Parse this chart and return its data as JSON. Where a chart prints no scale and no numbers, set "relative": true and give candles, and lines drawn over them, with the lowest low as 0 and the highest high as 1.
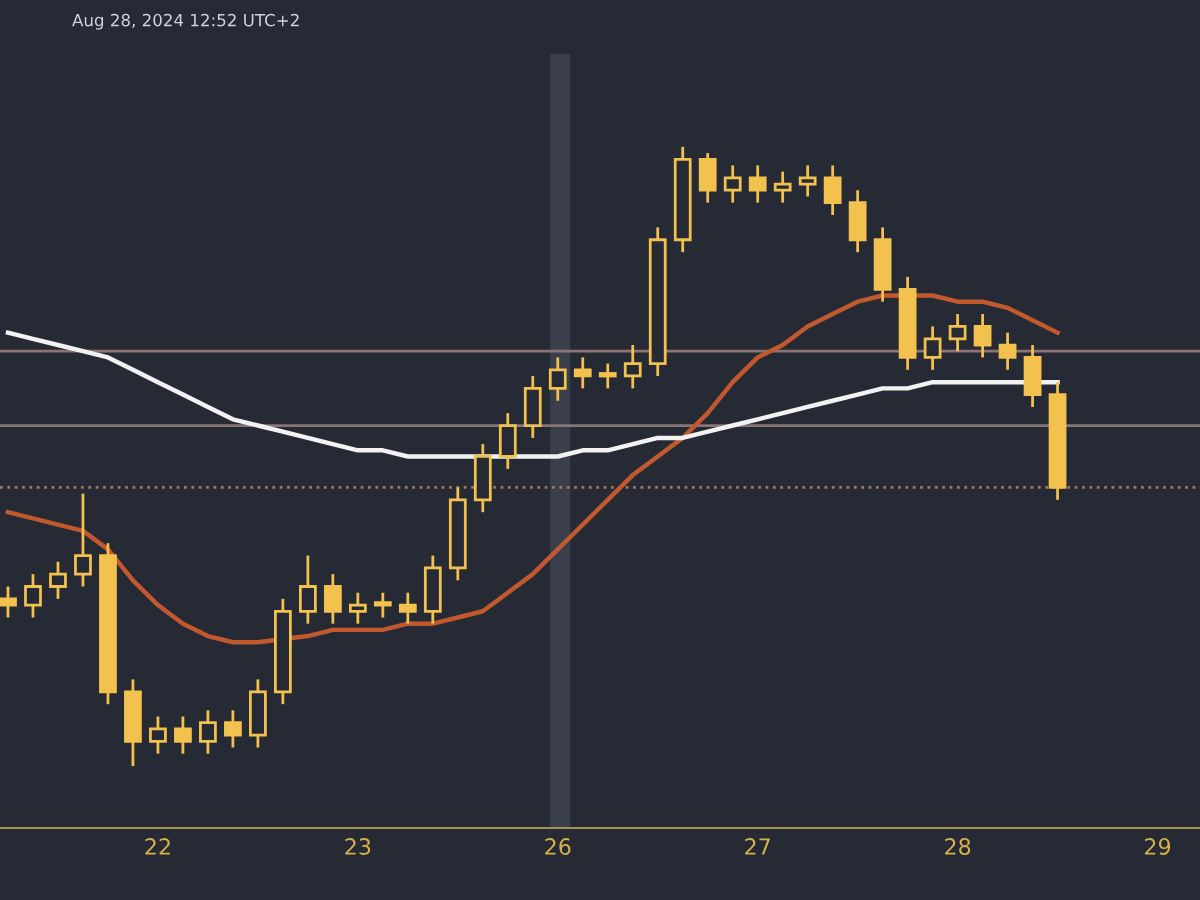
{
  "chart_data": {
    "type": "candlestick",
    "relative": true,
    "annotations": [
      "Aug 28, 2024 12:52 UTC+2"
    ],
    "categories": [
      null,
      null,
      null,
      null,
      null,
      null,
      "22",
      null,
      null,
      null,
      null,
      null,
      null,
      null,
      "23",
      null,
      null,
      null,
      null,
      null,
      null,
      null,
      "26",
      null,
      null,
      null,
      null,
      null,
      null,
      null,
      "27",
      null,
      null,
      null,
      null,
      null,
      null,
      null,
      "28",
      null,
      null,
      null,
      null,
      null,
      null,
      null,
      "29"
    ],
    "ohlc": [
      [
        0.27,
        0.29,
        0.24,
        0.26
      ],
      [
        0.26,
        0.31,
        0.24,
        0.29
      ],
      [
        0.29,
        0.33,
        0.27,
        0.31
      ],
      [
        0.31,
        0.44,
        0.29,
        0.34
      ],
      [
        0.34,
        0.36,
        0.1,
        0.12
      ],
      [
        0.12,
        0.14,
        0,
        0.04
      ],
      [
        0.04,
        0.08,
        0.02,
        0.06
      ],
      [
        0.06,
        0.08,
        0.02,
        0.04
      ],
      [
        0.04,
        0.09,
        0.02,
        0.07
      ],
      [
        0.07,
        0.09,
        0.03,
        0.05
      ],
      [
        0.05,
        0.14,
        0.03,
        0.12
      ],
      [
        0.12,
        0.27,
        0.1,
        0.25
      ],
      [
        0.25,
        0.34,
        0.23,
        0.29
      ],
      [
        0.29,
        0.31,
        0.23,
        0.25
      ],
      [
        0.25,
        0.28,
        0.23,
        0.26
      ],
      [
        0.26,
        0.28,
        0.24,
        0.26
      ],
      [
        0.26,
        0.28,
        0.23,
        0.25
      ],
      [
        0.25,
        0.34,
        0.23,
        0.32
      ],
      [
        0.32,
        0.45,
        0.3,
        0.43
      ],
      [
        0.43,
        0.52,
        0.41,
        0.5
      ],
      [
        0.5,
        0.57,
        0.48,
        0.55
      ],
      [
        0.55,
        0.63,
        0.53,
        0.61
      ],
      [
        0.61,
        0.66,
        0.59,
        0.64
      ],
      [
        0.64,
        0.66,
        0.61,
        0.63
      ],
      [
        0.63,
        0.65,
        0.61,
        0.63
      ],
      [
        0.63,
        0.68,
        0.61,
        0.65
      ],
      [
        0.65,
        0.87,
        0.63,
        0.85
      ],
      [
        0.85,
        1,
        0.83,
        0.98
      ],
      [
        0.98,
        0.99,
        0.91,
        0.93
      ],
      [
        0.93,
        0.97,
        0.91,
        0.95
      ],
      [
        0.95,
        0.97,
        0.91,
        0.93
      ],
      [
        0.93,
        0.96,
        0.91,
        0.94
      ],
      [
        0.94,
        0.97,
        0.92,
        0.95
      ],
      [
        0.95,
        0.97,
        0.89,
        0.91
      ],
      [
        0.91,
        0.93,
        0.83,
        0.85
      ],
      [
        0.85,
        0.87,
        0.75,
        0.77
      ],
      [
        0.77,
        0.79,
        0.64,
        0.66
      ],
      [
        0.66,
        0.71,
        0.64,
        0.69
      ],
      [
        0.69,
        0.73,
        0.67,
        0.71
      ],
      [
        0.71,
        0.73,
        0.66,
        0.68
      ],
      [
        0.68,
        0.7,
        0.64,
        0.66
      ],
      [
        0.66,
        0.68,
        0.58,
        0.6
      ],
      [
        0.6,
        0.62,
        0.43,
        0.45
      ],
      null,
      null,
      null,
      null
    ],
    "color": "#f2c14e",
    "series": [
      {
        "type": "line",
        "color": "#c2592e",
        "values": [
          0.41,
          0.4,
          0.39,
          0.38,
          0.35,
          0.3,
          0.26,
          0.23,
          0.21,
          0.2,
          0.2,
          null,
          0.21,
          0.22,
          0.22,
          0.22,
          0.23,
          0.23,
          0.24,
          0.25,
          0.28,
          0.31,
          0.35,
          0.39,
          0.43,
          0.47,
          0.5,
          0.53,
          0.57,
          0.62,
          0.66,
          0.68,
          0.71,
          0.73,
          0.75,
          0.76,
          null,
          0.76,
          0.75,
          0.75,
          0.74,
          0.72,
          0.7,
          null,
          null,
          null,
          null
        ]
      },
      {
        "type": "line",
        "color": "#f2f2f2",
        "values": [
          0.7,
          0.69,
          0.68,
          0.67,
          0.66,
          0.64,
          0.62,
          0.6,
          0.58,
          0.56,
          0.55,
          0.54,
          0.53,
          0.52,
          0.51,
          0.51,
          0.5,
          0.5,
          0.5,
          0.5,
          0.5,
          0.5,
          0.5,
          0.51,
          0.51,
          0.52,
          0.53,
          0.53,
          0.54,
          0.55,
          0.56,
          0.57,
          0.58,
          0.59,
          0.6,
          0.61,
          0.61,
          0.62,
          0.62,
          0.62,
          0.62,
          null,
          0.62,
          null,
          null,
          null,
          null
        ]
      }
    ],
    "ref_lines": [
      {
        "axis": "y",
        "value": 0.67,
        "color": "#8c7474",
        "line_style": "solid"
      },
      {
        "axis": "y",
        "value": 0.55,
        "color": "#8c7474",
        "line_style": "solid"
      },
      {
        "axis": "y",
        "value": 0.45,
        "color": "#a0785a",
        "line_style": "dotted"
      }
    ],
    "bands": [
      {
        "axis": "x",
        "from": "26",
        "to": "26",
        "color": "#3a3f4c"
      }
    ],
    "grid": false,
    "legend": false
  }
}
